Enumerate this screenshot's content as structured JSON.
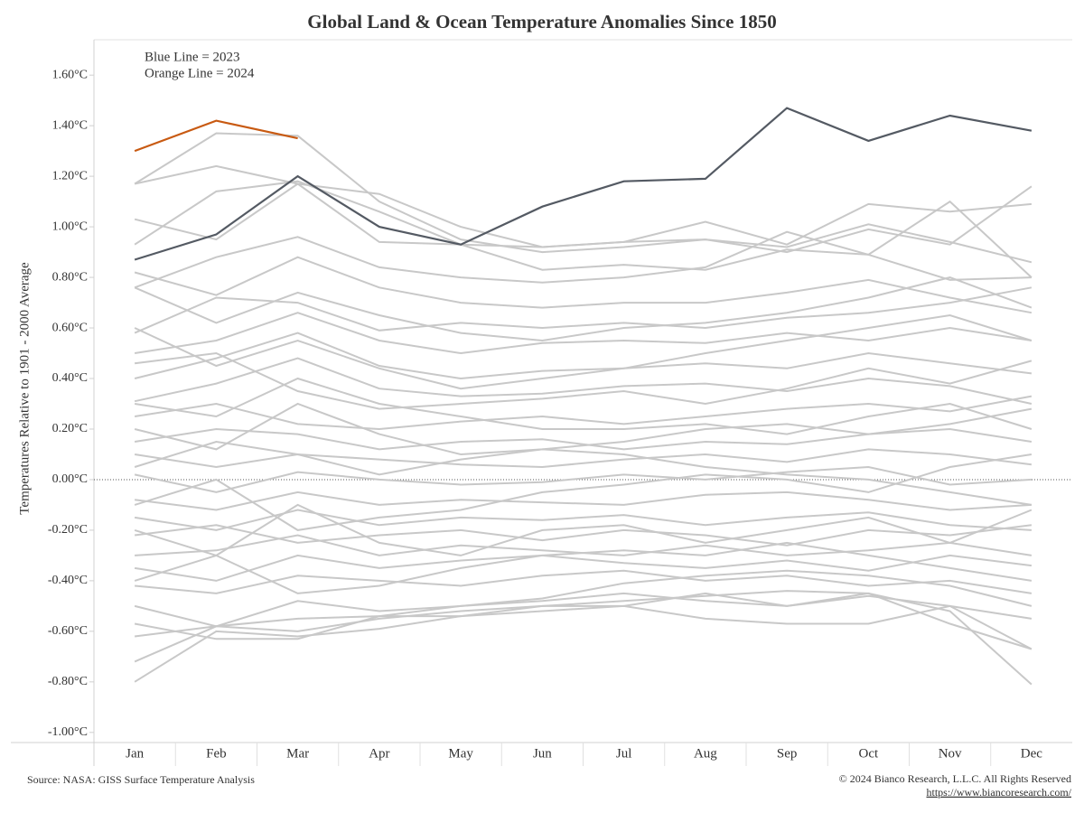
{
  "chart_data": {
    "type": "line",
    "title": "Global Land & Ocean Temperature Anomalies Since 1850",
    "y_label": "Temperatures Relative to 1901 - 2000 Average",
    "annotations": [
      {
        "text": "Blue Line = 2023",
        "color": "#4a5566"
      },
      {
        "text": "Orange Line = 2024",
        "color": "#c85a12"
      }
    ],
    "source": "Source: NASA: GISS Surface Temperature Analysis",
    "copyright": "© 2024 Bianco Research, L.L.C. All Rights Reserved",
    "url": "https://www.biancoresearch.com/",
    "categories": [
      "Jan",
      "Feb",
      "Mar",
      "Apr",
      "May",
      "Jun",
      "Jul",
      "Aug",
      "Sep",
      "Oct",
      "Nov",
      "Dec"
    ],
    "ylim": [
      -1.04,
      1.74
    ],
    "yticks": [
      {
        "value": -1.0,
        "label": "-1.00°C"
      },
      {
        "value": -0.8,
        "label": "-0.80°C"
      },
      {
        "value": -0.6,
        "label": "-0.60°C"
      },
      {
        "value": -0.4,
        "label": "-0.40°C"
      },
      {
        "value": -0.2,
        "label": "-0.20°C"
      },
      {
        "value": 0,
        "label": "0.00°C"
      },
      {
        "value": 0.2,
        "label": "0.20°C"
      },
      {
        "value": 0.4,
        "label": "0.40°C"
      },
      {
        "value": 0.6,
        "label": "0.60°C"
      },
      {
        "value": 0.8,
        "label": "0.80°C"
      },
      {
        "value": 1.0,
        "label": "1.00°C"
      },
      {
        "value": 1.2,
        "label": "1.20°C"
      },
      {
        "value": 1.4,
        "label": "1.40°C"
      },
      {
        "value": 1.6,
        "label": "1.60°C"
      }
    ],
    "zero_line": true,
    "series": [
      {
        "color": "#c8c8c8",
        "values": [
          1.17,
          1.24,
          1.17,
          1.13,
          1.0,
          0.92,
          0.94,
          0.95,
          0.92,
          1.01,
          0.94,
          0.86
        ]
      },
      {
        "color": "#c8c8c8",
        "values": [
          1.17,
          1.37,
          1.36,
          1.1,
          0.95,
          0.9,
          0.92,
          0.95,
          0.9,
          0.99,
          0.93,
          1.16
        ]
      },
      {
        "color": "#c8c8c8",
        "values": [
          1.03,
          0.95,
          1.17,
          0.94,
          0.93,
          0.92,
          0.94,
          1.02,
          0.93,
          1.09,
          1.06,
          1.09
        ]
      },
      {
        "color": "#c8c8c8",
        "values": [
          0.93,
          1.14,
          1.18,
          1.06,
          0.93,
          0.83,
          0.85,
          0.83,
          0.91,
          0.89,
          1.1,
          0.8
        ]
      },
      {
        "color": "#c8c8c8",
        "values": [
          0.76,
          0.88,
          0.96,
          0.84,
          0.8,
          0.78,
          0.8,
          0.84,
          0.98,
          0.89,
          0.79,
          0.8
        ]
      },
      {
        "color": "#c8c8c8",
        "values": [
          0.82,
          0.73,
          0.88,
          0.76,
          0.7,
          0.68,
          0.7,
          0.7,
          0.74,
          0.79,
          0.72,
          0.66
        ]
      },
      {
        "color": "#c8c8c8",
        "values": [
          0.58,
          0.72,
          0.7,
          0.59,
          0.62,
          0.6,
          0.62,
          0.6,
          0.64,
          0.66,
          0.7,
          0.76
        ]
      },
      {
        "color": "#c8c8c8",
        "values": [
          0.5,
          0.55,
          0.66,
          0.55,
          0.5,
          0.54,
          0.55,
          0.54,
          0.58,
          0.55,
          0.6,
          0.55
        ]
      },
      {
        "color": "#c8c8c8",
        "values": [
          0.4,
          0.48,
          0.58,
          0.45,
          0.4,
          0.43,
          0.44,
          0.46,
          0.44,
          0.5,
          0.46,
          0.42
        ]
      },
      {
        "color": "#c8c8c8",
        "values": [
          0.31,
          0.38,
          0.48,
          0.36,
          0.33,
          0.34,
          0.37,
          0.38,
          0.35,
          0.4,
          0.37,
          0.3
        ]
      },
      {
        "color": "#c8c8c8",
        "values": [
          0.25,
          0.3,
          0.22,
          0.2,
          0.23,
          0.25,
          0.22,
          0.25,
          0.28,
          0.3,
          0.27,
          0.33
        ]
      },
      {
        "color": "#c8c8c8",
        "values": [
          0.15,
          0.2,
          0.18,
          0.12,
          0.15,
          0.16,
          0.12,
          0.15,
          0.14,
          0.18,
          0.2,
          0.15
        ]
      },
      {
        "color": "#c8c8c8",
        "values": [
          0.1,
          0.05,
          0.1,
          0.08,
          0.06,
          0.05,
          0.08,
          0.1,
          0.07,
          0.12,
          0.1,
          0.06
        ]
      },
      {
        "color": "#c8c8c8",
        "values": [
          0.02,
          -0.05,
          0.03,
          0.0,
          -0.02,
          -0.01,
          0.02,
          0.0,
          0.03,
          0.05,
          -0.02,
          0.0
        ]
      },
      {
        "color": "#c8c8c8",
        "values": [
          -0.08,
          -0.12,
          -0.05,
          -0.1,
          -0.08,
          -0.09,
          -0.1,
          -0.06,
          -0.05,
          -0.08,
          -0.12,
          -0.1
        ]
      },
      {
        "color": "#c8c8c8",
        "values": [
          -0.15,
          -0.2,
          -0.12,
          -0.18,
          -0.15,
          -0.16,
          -0.14,
          -0.18,
          -0.15,
          -0.13,
          -0.18,
          -0.2
        ]
      },
      {
        "color": "#c8c8c8",
        "values": [
          -0.22,
          -0.18,
          -0.25,
          -0.22,
          -0.2,
          -0.24,
          -0.2,
          -0.22,
          -0.26,
          -0.2,
          -0.22,
          -0.18
        ]
      },
      {
        "color": "#c8c8c8",
        "values": [
          -0.3,
          -0.28,
          -0.22,
          -0.3,
          -0.26,
          -0.28,
          -0.3,
          -0.26,
          -0.3,
          -0.28,
          -0.25,
          -0.3
        ]
      },
      {
        "color": "#c8c8c8",
        "values": [
          -0.35,
          -0.4,
          -0.3,
          -0.35,
          -0.32,
          -0.3,
          -0.33,
          -0.35,
          -0.32,
          -0.36,
          -0.3,
          -0.34
        ]
      },
      {
        "color": "#c8c8c8",
        "values": [
          -0.42,
          -0.45,
          -0.38,
          -0.4,
          -0.42,
          -0.38,
          -0.36,
          -0.4,
          -0.38,
          -0.42,
          -0.4,
          -0.45
        ]
      },
      {
        "color": "#c8c8c8",
        "values": [
          -0.5,
          -0.58,
          -0.48,
          -0.52,
          -0.5,
          -0.48,
          -0.45,
          -0.48,
          -0.5,
          -0.46,
          -0.5,
          -0.55
        ]
      },
      {
        "color": "#c8c8c8",
        "values": [
          -0.62,
          -0.58,
          -0.55,
          -0.54,
          -0.54,
          -0.52,
          -0.5,
          -0.55,
          -0.57,
          -0.57,
          -0.5,
          -0.67
        ]
      },
      {
        "color": "#c8c8c8",
        "values": [
          -0.72,
          -0.58,
          -0.6,
          -0.55,
          -0.52,
          -0.5,
          -0.48,
          -0.46,
          -0.44,
          -0.45,
          -0.52,
          -0.81
        ]
      },
      {
        "color": "#c8c8c8",
        "values": [
          -0.8,
          -0.6,
          -0.62,
          -0.59,
          -0.54,
          -0.5,
          -0.5,
          -0.45,
          -0.5,
          -0.45,
          -0.57,
          -0.67
        ]
      },
      {
        "color": "#c8c8c8",
        "values": [
          -0.57,
          -0.63,
          -0.63,
          -0.54,
          -0.5,
          -0.47,
          -0.41,
          -0.38,
          -0.36,
          -0.38,
          -0.42,
          -0.5
        ]
      },
      {
        "color": "#c8c8c8",
        "values": [
          0.76,
          0.62,
          0.74,
          0.65,
          0.58,
          0.55,
          0.6,
          0.62,
          0.66,
          0.72,
          0.8,
          0.68
        ]
      },
      {
        "color": "#c8c8c8",
        "values": [
          0.6,
          0.45,
          0.55,
          0.44,
          0.36,
          0.4,
          0.44,
          0.5,
          0.55,
          0.6,
          0.65,
          0.55
        ]
      },
      {
        "color": "#c8c8c8",
        "values": [
          0.46,
          0.5,
          0.35,
          0.28,
          0.3,
          0.32,
          0.35,
          0.3,
          0.36,
          0.44,
          0.38,
          0.47
        ]
      },
      {
        "color": "#c8c8c8",
        "values": [
          0.2,
          0.12,
          0.3,
          0.18,
          0.1,
          0.12,
          0.15,
          0.2,
          0.22,
          0.18,
          0.22,
          0.28
        ]
      },
      {
        "color": "#c8c8c8",
        "values": [
          -0.1,
          0.0,
          -0.2,
          -0.15,
          -0.12,
          -0.05,
          -0.02,
          0.02,
          0.0,
          -0.05,
          0.05,
          0.1
        ]
      },
      {
        "color": "#c8c8c8",
        "values": [
          -0.2,
          -0.3,
          -0.1,
          -0.25,
          -0.3,
          -0.2,
          -0.18,
          -0.25,
          -0.2,
          -0.15,
          -0.25,
          -0.12
        ]
      },
      {
        "color": "#c8c8c8",
        "values": [
          0.05,
          0.15,
          0.1,
          0.02,
          0.08,
          0.12,
          0.1,
          0.05,
          0.02,
          0.0,
          -0.05,
          -0.1
        ]
      },
      {
        "color": "#c8c8c8",
        "values": [
          -0.4,
          -0.3,
          -0.45,
          -0.42,
          -0.35,
          -0.3,
          -0.28,
          -0.3,
          -0.25,
          -0.3,
          -0.35,
          -0.4
        ]
      },
      {
        "color": "#c8c8c8",
        "values": [
          0.3,
          0.25,
          0.4,
          0.3,
          0.25,
          0.2,
          0.2,
          0.22,
          0.18,
          0.25,
          0.3,
          0.2
        ]
      },
      {
        "color": "#545a63",
        "values": [
          0.87,
          0.97,
          1.2,
          1.0,
          0.93,
          1.08,
          1.18,
          1.19,
          1.47,
          1.34,
          1.44,
          1.38
        ]
      },
      {
        "color": "#c85a12",
        "values": [
          1.3,
          1.42,
          1.35,
          null,
          null,
          null,
          null,
          null,
          null,
          null,
          null,
          null
        ]
      }
    ]
  }
}
